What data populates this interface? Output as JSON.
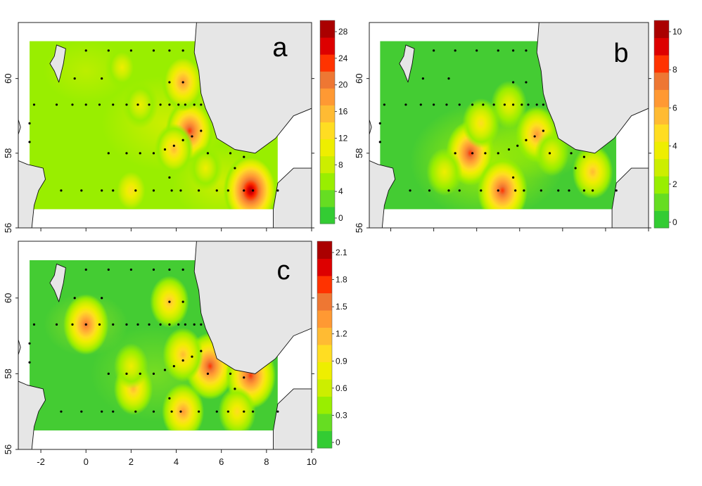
{
  "panels": [
    {
      "id": "a",
      "label": "a",
      "colorbar_ticks": [
        "0",
        "4",
        "8",
        "12",
        "16",
        "20",
        "24",
        "28"
      ],
      "y_ticks": [
        "56",
        "58",
        "60"
      ],
      "x_ticks": [],
      "hotspots": [
        {
          "lon": 7.3,
          "lat": 57.0,
          "level": 1.0
        },
        {
          "lon": 4.6,
          "lat": 58.6,
          "level": 0.8
        },
        {
          "lon": 4.3,
          "lat": 59.9,
          "level": 0.65
        },
        {
          "lon": 2.0,
          "lat": 57.0,
          "level": 0.45
        },
        {
          "lon": 3.9,
          "lat": 58.1,
          "level": 0.5
        },
        {
          "lon": 2.4,
          "lat": 59.3,
          "level": 0.4
        },
        {
          "lon": 1.6,
          "lat": 60.3,
          "level": 0.35
        },
        {
          "lon": 5.3,
          "lat": 57.6,
          "level": 0.35
        }
      ]
    },
    {
      "id": "b",
      "label": "b",
      "colorbar_ticks": [
        "0",
        "2",
        "4",
        "6",
        "8",
        "10"
      ],
      "y_ticks": [
        "56",
        "58",
        "60"
      ],
      "x_ticks": [],
      "hotspots": [
        {
          "lon": 1.7,
          "lat": 58.0,
          "level": 0.8
        },
        {
          "lon": 3.2,
          "lat": 57.0,
          "level": 0.85
        },
        {
          "lon": 4.8,
          "lat": 58.5,
          "level": 0.6
        },
        {
          "lon": 7.4,
          "lat": 57.5,
          "level": 0.55
        },
        {
          "lon": 2.2,
          "lat": 58.8,
          "level": 0.45
        },
        {
          "lon": 3.5,
          "lat": 59.3,
          "level": 0.4
        },
        {
          "lon": 0.5,
          "lat": 57.5,
          "level": 0.4
        },
        {
          "lon": 5.5,
          "lat": 58.0,
          "level": 0.35
        }
      ]
    },
    {
      "id": "c",
      "label": "c",
      "colorbar_ticks": [
        "0",
        "0.3",
        "0.6",
        "0.9",
        "1.2",
        "1.5",
        "1.8",
        "2.1"
      ],
      "y_ticks": [
        "56",
        "58",
        "60"
      ],
      "x_ticks": [
        "-2",
        "0",
        "2",
        "4",
        "6",
        "8",
        "10"
      ],
      "hotspots": [
        {
          "lon": 0.0,
          "lat": 59.3,
          "level": 0.7
        },
        {
          "lon": 5.5,
          "lat": 58.2,
          "level": 0.85
        },
        {
          "lon": 7.3,
          "lat": 57.95,
          "level": 0.85
        },
        {
          "lon": 4.3,
          "lat": 58.5,
          "level": 0.55
        },
        {
          "lon": 4.3,
          "lat": 57.0,
          "level": 0.6
        },
        {
          "lon": 3.7,
          "lat": 59.9,
          "level": 0.5
        },
        {
          "lon": 2.1,
          "lat": 57.6,
          "level": 0.5
        },
        {
          "lon": 6.7,
          "lat": 57.0,
          "level": 0.45
        },
        {
          "lon": 2.0,
          "lat": 58.2,
          "level": 0.35
        }
      ]
    }
  ],
  "stations": [
    {
      "lon": 0.0,
      "lat": 60.75
    },
    {
      "lon": 1.0,
      "lat": 60.75
    },
    {
      "lon": 2.0,
      "lat": 60.75
    },
    {
      "lon": 3.0,
      "lat": 60.75
    },
    {
      "lon": 3.7,
      "lat": 60.75
    },
    {
      "lon": 4.3,
      "lat": 60.75
    },
    {
      "lon": -0.5,
      "lat": 60.0
    },
    {
      "lon": 0.7,
      "lat": 60.0
    },
    {
      "lon": 3.7,
      "lat": 59.9
    },
    {
      "lon": 4.3,
      "lat": 59.9
    },
    {
      "lon": -2.3,
      "lat": 59.3
    },
    {
      "lon": -1.3,
      "lat": 59.3
    },
    {
      "lon": -0.6,
      "lat": 59.3
    },
    {
      "lon": 0.0,
      "lat": 59.3
    },
    {
      "lon": 0.6,
      "lat": 59.3
    },
    {
      "lon": 1.2,
      "lat": 59.3
    },
    {
      "lon": 1.8,
      "lat": 59.3
    },
    {
      "lon": 2.3,
      "lat": 59.3
    },
    {
      "lon": 2.8,
      "lat": 59.3
    },
    {
      "lon": 3.3,
      "lat": 59.3
    },
    {
      "lon": 3.7,
      "lat": 59.3
    },
    {
      "lon": 4.1,
      "lat": 59.3
    },
    {
      "lon": 4.4,
      "lat": 59.3
    },
    {
      "lon": 4.8,
      "lat": 59.3
    },
    {
      "lon": 5.1,
      "lat": 59.3
    },
    {
      "lon": -2.5,
      "lat": 58.8
    },
    {
      "lon": -2.5,
      "lat": 58.3
    },
    {
      "lon": 1.0,
      "lat": 58.0
    },
    {
      "lon": 1.8,
      "lat": 58.0
    },
    {
      "lon": 2.4,
      "lat": 58.0
    },
    {
      "lon": 3.0,
      "lat": 58.0
    },
    {
      "lon": 3.5,
      "lat": 58.1
    },
    {
      "lon": 3.9,
      "lat": 58.2
    },
    {
      "lon": 4.3,
      "lat": 58.35
    },
    {
      "lon": 4.7,
      "lat": 58.45
    },
    {
      "lon": 5.1,
      "lat": 58.6
    },
    {
      "lon": 5.4,
      "lat": 58.0
    },
    {
      "lon": 6.4,
      "lat": 58.0
    },
    {
      "lon": 7.0,
      "lat": 57.9
    },
    {
      "lon": 3.7,
      "lat": 57.35
    },
    {
      "lon": 6.6,
      "lat": 57.6
    },
    {
      "lon": -1.1,
      "lat": 57.0
    },
    {
      "lon": -0.2,
      "lat": 57.0
    },
    {
      "lon": 0.7,
      "lat": 57.0
    },
    {
      "lon": 1.2,
      "lat": 57.0
    },
    {
      "lon": 2.2,
      "lat": 57.0
    },
    {
      "lon": 3.0,
      "lat": 57.0
    },
    {
      "lon": 3.8,
      "lat": 57.0
    },
    {
      "lon": 4.2,
      "lat": 57.0
    },
    {
      "lon": 5.0,
      "lat": 57.0
    },
    {
      "lon": 5.8,
      "lat": 57.0
    },
    {
      "lon": 6.3,
      "lat": 57.0
    },
    {
      "lon": 7.0,
      "lat": 57.0
    },
    {
      "lon": 7.4,
      "lat": 57.0
    },
    {
      "lon": 8.5,
      "lat": 57.0
    }
  ],
  "map": {
    "lon_range": [
      -3,
      10
    ],
    "lat_range": [
      56,
      61.5
    ],
    "grid_lon": [
      -2.5,
      8.5
    ],
    "grid_lat": [
      56.5,
      61.0
    ]
  },
  "colors": {
    "ramp": [
      "#33cc33",
      "#66dd22",
      "#99ee00",
      "#ccee00",
      "#eeee00",
      "#ffdd22",
      "#ffbb33",
      "#ff9933",
      "#ee7733",
      "#ff3300",
      "#dd0000",
      "#aa0000"
    ],
    "land": "#e6e6e6",
    "sea_bg": "#ffffff"
  }
}
